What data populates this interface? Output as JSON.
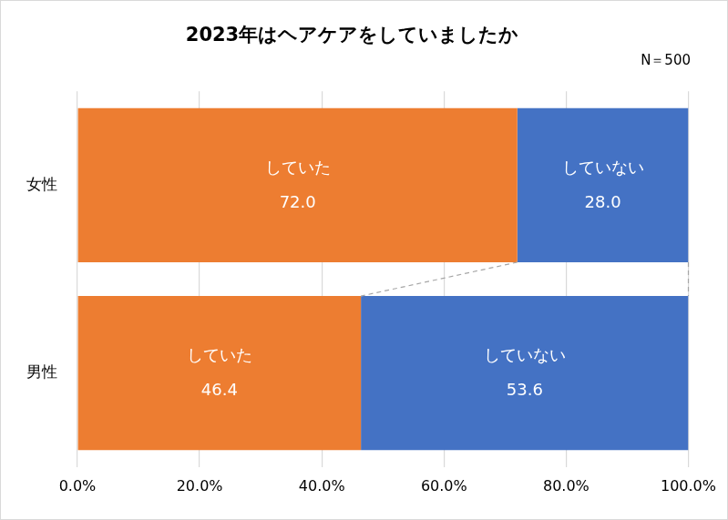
{
  "chart_data": {
    "type": "bar",
    "orientation": "horizontal",
    "stacked": true,
    "title": "2023年はヘアケアをしていましたか",
    "annotation": "N＝500",
    "categories": [
      "女性",
      "男性"
    ],
    "series": [
      {
        "name": "していた",
        "color": "#ed7d31",
        "values": [
          72.0,
          46.4
        ],
        "value_labels": [
          "72.0",
          "46.4"
        ]
      },
      {
        "name": "していない",
        "color": "#4472c4",
        "values": [
          28.0,
          53.6
        ],
        "value_labels": [
          "28.0",
          "53.6"
        ]
      }
    ],
    "xlim": [
      0,
      100
    ],
    "xticks": [
      {
        "value": 0,
        "label": "0.0%"
      },
      {
        "value": 20,
        "label": "20.0%"
      },
      {
        "value": 40,
        "label": "40.0%"
      },
      {
        "value": 60,
        "label": "60.0%"
      },
      {
        "value": 80,
        "label": "80.0%"
      },
      {
        "value": 100,
        "label": "100.0%"
      }
    ],
    "grid": true,
    "data_labels": true
  }
}
